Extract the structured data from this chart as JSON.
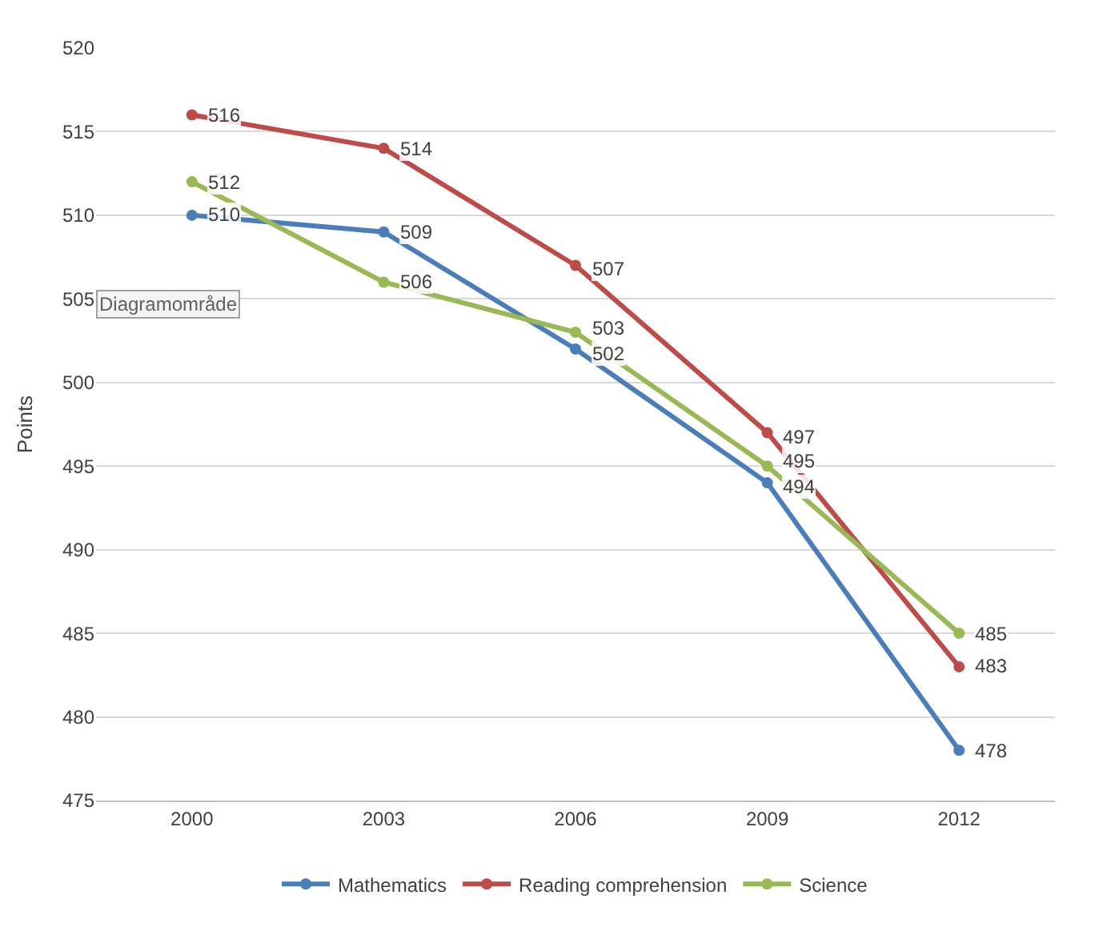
{
  "chart_data": {
    "type": "line",
    "ylabel": "Points",
    "categories": [
      "2000",
      "2003",
      "2006",
      "2009",
      "2012"
    ],
    "series": [
      {
        "name": "Mathematics",
        "color": "#4a7ebb",
        "values": [
          510,
          509,
          502,
          494,
          478
        ]
      },
      {
        "name": "Reading comprehension",
        "color": "#be4b48",
        "values": [
          516,
          514,
          507,
          497,
          483
        ]
      },
      {
        "name": "Science",
        "color": "#98b954",
        "values": [
          512,
          506,
          503,
          495,
          485
        ]
      }
    ],
    "ylim": [
      475,
      520
    ],
    "yticks": [
      475,
      480,
      485,
      490,
      495,
      500,
      505,
      510,
      515,
      520
    ],
    "grid": "y",
    "legend": "bottom",
    "marker": "circle",
    "line_style": "solid",
    "data_labels": true,
    "annotations": [
      "Diagramområde"
    ]
  }
}
